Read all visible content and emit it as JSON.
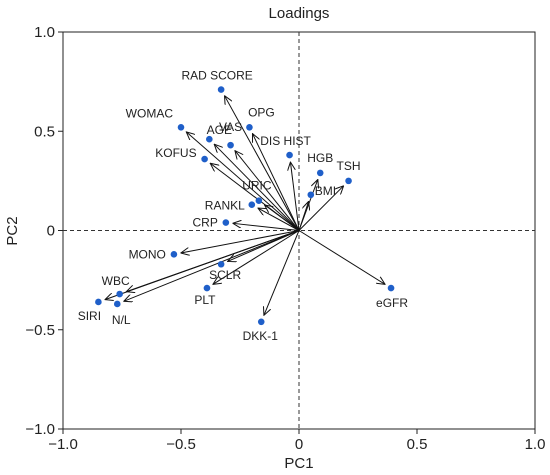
{
  "chart_data": {
    "type": "scatter",
    "title": "Loadings",
    "xlabel": "PC1",
    "ylabel": "PC2",
    "xlim": [
      -1.0,
      1.0
    ],
    "ylim": [
      -1.0,
      1.0
    ],
    "xticks": [
      "−1.0",
      "−0.5",
      "0",
      "0.5",
      "1.0"
    ],
    "yticks": [
      "1.0",
      "0.5",
      "0",
      "−0.5",
      "−1.0"
    ],
    "reference_lines": "dashed at x=0 and y=0",
    "arrows_from_origin": true,
    "point_color": "#1f5fc9",
    "points": [
      {
        "name": "RAD SCORE",
        "x": -0.33,
        "y": 0.71
      },
      {
        "name": "WOMAC",
        "x": -0.5,
        "y": 0.52
      },
      {
        "name": "AGE",
        "x": -0.38,
        "y": 0.46
      },
      {
        "name": "VAS",
        "x": -0.29,
        "y": 0.43
      },
      {
        "name": "OPG",
        "x": -0.21,
        "y": 0.52
      },
      {
        "name": "DIS HIST",
        "x": -0.04,
        "y": 0.38
      },
      {
        "name": "KOFUS",
        "x": -0.4,
        "y": 0.36
      },
      {
        "name": "HGB",
        "x": 0.09,
        "y": 0.29
      },
      {
        "name": "TSH",
        "x": 0.21,
        "y": 0.25
      },
      {
        "name": "BMI",
        "x": 0.05,
        "y": 0.18
      },
      {
        "name": "URIC",
        "x": -0.17,
        "y": 0.15
      },
      {
        "name": "RANKL",
        "x": -0.2,
        "y": 0.13
      },
      {
        "name": "CRP",
        "x": -0.31,
        "y": 0.04
      },
      {
        "name": "MONO",
        "x": -0.53,
        "y": -0.12
      },
      {
        "name": "SCLR",
        "x": -0.33,
        "y": -0.17
      },
      {
        "name": "WBC",
        "x": -0.76,
        "y": -0.32
      },
      {
        "name": "PLT",
        "x": -0.39,
        "y": -0.29
      },
      {
        "name": "SIRI",
        "x": -0.85,
        "y": -0.36
      },
      {
        "name": "N/L",
        "x": -0.77,
        "y": -0.37
      },
      {
        "name": "DKK-1",
        "x": -0.16,
        "y": -0.46
      },
      {
        "name": "eGFR",
        "x": 0.39,
        "y": -0.29
      }
    ]
  }
}
